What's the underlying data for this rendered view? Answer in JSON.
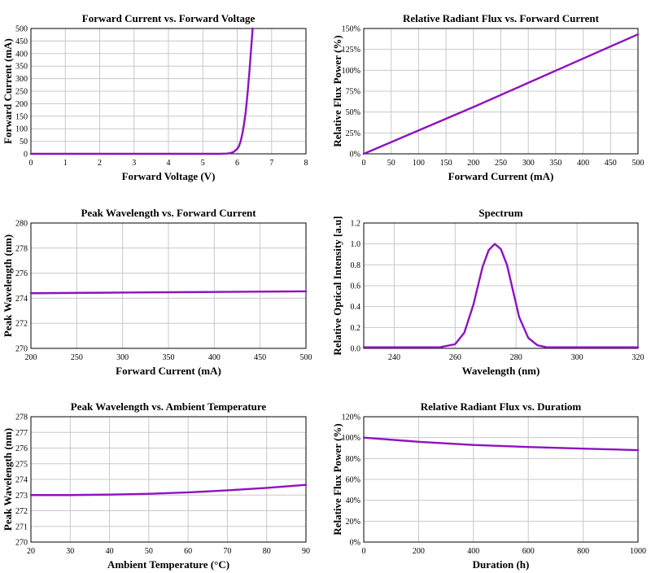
{
  "colors": {
    "series": "#8e12c0",
    "grid": "#c8c8c8",
    "axis": "#000000"
  },
  "chart_data": [
    {
      "type": "line",
      "title": "Forward Current vs. Forward Voltage",
      "xlabel": "Forward Voltage (V)",
      "ylabel": "Forward Current (mA)",
      "xlim": [
        0,
        8
      ],
      "ylim": [
        0,
        500
      ],
      "xticks": [
        "0",
        "1",
        "2",
        "3",
        "4",
        "5",
        "6",
        "7",
        "8"
      ],
      "yticks": [
        "0",
        "50",
        "100",
        "150",
        "200",
        "250",
        "300",
        "350",
        "400",
        "450",
        "500"
      ],
      "grid": true,
      "series": [
        {
          "x": [
            0,
            1,
            2,
            3,
            4,
            5,
            5.5,
            5.7,
            5.8,
            5.9,
            6.0,
            6.05,
            6.1,
            6.15,
            6.2,
            6.25,
            6.3,
            6.35,
            6.4,
            6.45
          ],
          "y": [
            0,
            0,
            0,
            0,
            0,
            0,
            0,
            1,
            3,
            8,
            20,
            30,
            50,
            80,
            120,
            170,
            240,
            320,
            410,
            500
          ]
        }
      ]
    },
    {
      "type": "line",
      "title": "Relative Radiant Flux vs. Forward Current",
      "xlabel": "Forward Current (mA)",
      "ylabel": "Relative Flux Power (%)",
      "xlim": [
        0,
        500
      ],
      "ylim": [
        0,
        150
      ],
      "xticks": [
        "0",
        "50",
        "100",
        "150",
        "200",
        "250",
        "300",
        "350",
        "400",
        "450",
        "500"
      ],
      "yticks": [
        "0%",
        "25%",
        "50%",
        "75%",
        "100%",
        "125%",
        "150%"
      ],
      "grid": true,
      "series": [
        {
          "x": [
            0,
            100,
            200,
            300,
            400,
            500
          ],
          "y": [
            0,
            28,
            56,
            85,
            114,
            143
          ]
        }
      ]
    },
    {
      "type": "line",
      "title": "Peak Wavelength vs. Forward Current",
      "xlabel": "Forward Current (mA)",
      "ylabel": "Peak Wavelength (nm)",
      "xlim": [
        200,
        500
      ],
      "ylim": [
        270,
        280
      ],
      "xticks": [
        "200",
        "250",
        "300",
        "350",
        "400",
        "450",
        "500"
      ],
      "yticks": [
        "270",
        "272",
        "274",
        "276",
        "278",
        "280"
      ],
      "grid": true,
      "series": [
        {
          "x": [
            200,
            300,
            400,
            500
          ],
          "y": [
            274.4,
            274.45,
            274.5,
            274.55
          ]
        }
      ]
    },
    {
      "type": "line",
      "title": "Spectrum",
      "xlabel": "Wavelength (nm)",
      "ylabel": "Relative Optical Intensity [a.u]",
      "xlim": [
        230,
        320
      ],
      "ylim": [
        0,
        1.2
      ],
      "xticks": [
        "240",
        "260",
        "280",
        "300",
        "320"
      ],
      "xtick_values": [
        240,
        260,
        280,
        300,
        320
      ],
      "yticks": [
        "0.0",
        "0.2",
        "0.4",
        "0.6",
        "0.8",
        "1.0",
        "1.2"
      ],
      "grid": true,
      "series": [
        {
          "x": [
            230,
            255,
            260,
            263,
            266,
            269,
            271,
            273,
            275,
            277,
            279,
            281,
            284,
            287,
            290,
            320
          ],
          "y": [
            0.01,
            0.01,
            0.04,
            0.15,
            0.42,
            0.78,
            0.94,
            1.0,
            0.95,
            0.8,
            0.55,
            0.3,
            0.1,
            0.03,
            0.01,
            0.01
          ]
        }
      ]
    },
    {
      "type": "line",
      "title": "Peak Wavelength vs. Ambient Temperature",
      "xlabel": "Ambient Temperature (°C)",
      "ylabel": "Peak Wavelength (nm)",
      "xlim": [
        20,
        90
      ],
      "ylim": [
        270,
        278
      ],
      "xticks": [
        "20",
        "30",
        "40",
        "50",
        "60",
        "70",
        "80",
        "90"
      ],
      "yticks": [
        "270",
        "271",
        "272",
        "273",
        "274",
        "275",
        "276",
        "277",
        "278"
      ],
      "grid": true,
      "series": [
        {
          "x": [
            20,
            30,
            40,
            50,
            60,
            70,
            80,
            90
          ],
          "y": [
            273.0,
            273.0,
            273.03,
            273.08,
            273.17,
            273.3,
            273.46,
            273.65
          ]
        }
      ]
    },
    {
      "type": "line",
      "title": "Relative Radiant Flux vs. Duratiom",
      "xlabel": "Duration (h)",
      "ylabel": "Relative Flux Power (%)",
      "xlim": [
        0,
        1000
      ],
      "ylim": [
        0,
        120
      ],
      "xticks": [
        "0",
        "200",
        "400",
        "600",
        "800",
        "1000"
      ],
      "yticks": [
        "0%",
        "20%",
        "40%",
        "60%",
        "80%",
        "100%",
        "120%"
      ],
      "grid": true,
      "series": [
        {
          "x": [
            0,
            200,
            400,
            600,
            800,
            1000
          ],
          "y": [
            100,
            96,
            93,
            91,
            89.5,
            88
          ]
        }
      ]
    }
  ]
}
